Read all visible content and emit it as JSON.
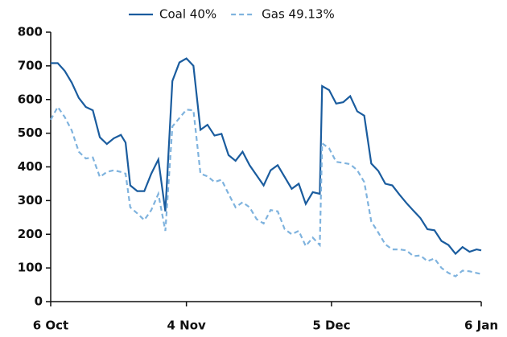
{
  "chart_data": {
    "type": "line",
    "x": [
      0,
      1.5,
      3,
      4.5,
      6,
      7.5,
      9,
      10.5,
      12,
      13.5,
      15,
      16,
      17,
      18.5,
      20,
      21.5,
      23,
      24.5,
      26,
      27.5,
      29,
      30.5,
      32,
      33.5,
      35,
      36.5,
      38,
      39.5,
      41,
      42.5,
      44,
      45.5,
      47,
      48.5,
      50,
      51.5,
      53,
      54.5,
      56,
      57.5,
      58,
      59.5,
      61,
      62.5,
      64,
      65.5,
      67,
      68.5,
      70,
      71.5,
      73,
      74.5,
      76,
      77.5,
      79,
      80.5,
      82,
      83.5,
      85,
      86.5,
      88,
      89.5,
      91,
      92
    ],
    "series": [
      {
        "name": "Coal 40%",
        "color": "#1a5c9e",
        "dash": false,
        "values": [
          708,
          708,
          685,
          650,
          605,
          578,
          568,
          488,
          468,
          485,
          495,
          472,
          345,
          328,
          328,
          380,
          422,
          268,
          655,
          710,
          722,
          700,
          510,
          525,
          493,
          498,
          435,
          418,
          445,
          405,
          375,
          345,
          390,
          405,
          370,
          335,
          350,
          290,
          325,
          320,
          640,
          628,
          588,
          592,
          610,
          565,
          552,
          410,
          388,
          350,
          345,
          318,
          293,
          270,
          248,
          215,
          212,
          180,
          168,
          142,
          162,
          148,
          155,
          152
        ]
      },
      {
        "name": "Gas 49.13%",
        "color": "#7fb3de",
        "dash": true,
        "values": [
          540,
          578,
          548,
          508,
          445,
          425,
          428,
          370,
          385,
          390,
          385,
          380,
          280,
          262,
          242,
          272,
          320,
          210,
          520,
          545,
          570,
          568,
          380,
          372,
          355,
          362,
          320,
          280,
          295,
          280,
          245,
          232,
          272,
          268,
          215,
          200,
          210,
          165,
          190,
          168,
          470,
          455,
          415,
          412,
          408,
          390,
          355,
          238,
          205,
          170,
          155,
          155,
          152,
          135,
          137,
          120,
          128,
          100,
          85,
          75,
          92,
          90,
          85,
          82
        ]
      }
    ],
    "xlim": [
      0,
      92
    ],
    "xticks": [
      {
        "value": 0,
        "label": "6 Oct"
      },
      {
        "value": 29,
        "label": "4 Nov"
      },
      {
        "value": 60,
        "label": "5 Dec"
      },
      {
        "value": 92,
        "label": "6 Jan"
      }
    ],
    "ylim": [
      0,
      800
    ],
    "yticks": [
      0,
      100,
      200,
      300,
      400,
      500,
      600,
      700,
      800
    ],
    "grid": false,
    "legend": "top"
  }
}
